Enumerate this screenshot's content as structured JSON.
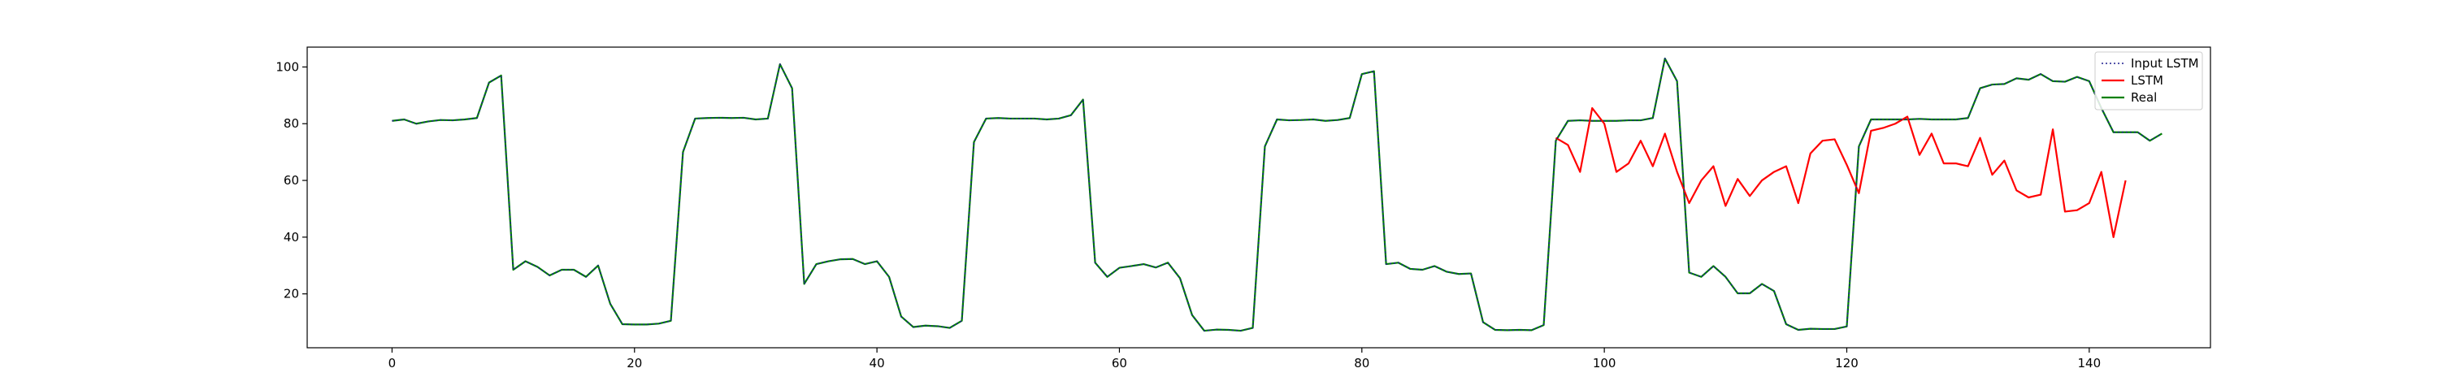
{
  "chart_data": {
    "type": "line",
    "title": "",
    "xlabel": "",
    "ylabel": "",
    "xlim": [
      -7,
      150
    ],
    "ylim": [
      1,
      107
    ],
    "xticks": [
      0,
      20,
      40,
      60,
      80,
      100,
      120,
      140
    ],
    "yticks": [
      20,
      40,
      60,
      80,
      100
    ],
    "grid": false,
    "legend_position": "top-right",
    "series": [
      {
        "name": "Input LSTM",
        "color": "#1f1f8f",
        "style": "dotted",
        "x_start": 0,
        "values": [
          81,
          81.5,
          80,
          80.8,
          81.3,
          81.2,
          81.5,
          82,
          94.5,
          97,
          28.5,
          31.5,
          29.5,
          26.5,
          28.5,
          28.5,
          26,
          30,
          16.5,
          9.3,
          9.2,
          9.2,
          9.5,
          10.5,
          70,
          81.8,
          82,
          82.1,
          82,
          82.1,
          81.5,
          81.8,
          101,
          92.5,
          23.5,
          30.5,
          31.5,
          32.2,
          32.3,
          30.5,
          31.5,
          26,
          12,
          8.3,
          8.8,
          8.6,
          8,
          10.5,
          73.5,
          81.8,
          82,
          81.8,
          81.8,
          81.8,
          81.5,
          81.8,
          83,
          88.5,
          31,
          26,
          29.2,
          29.8,
          30.5,
          29.3,
          31,
          25.5,
          12.5,
          7,
          7.4,
          7.3,
          7,
          8,
          72,
          81.5,
          81.2,
          81.3,
          81.5,
          81,
          81.3,
          82,
          97.5,
          98.5,
          30.5,
          31,
          28.8,
          28.5,
          29.8,
          27.8,
          27,
          27.2,
          10,
          7.3,
          7.2,
          7.3,
          7.2,
          9,
          74,
          81,
          81.2,
          81,
          81,
          81,
          81.2,
          81.2,
          82,
          103,
          95,
          27.5,
          26,
          29.8,
          26,
          20.2,
          20.2,
          23.5,
          21,
          9.3,
          7.3,
          7.7,
          7.6,
          7.6,
          8.5,
          72,
          81.5,
          81.5,
          81.5,
          81.5,
          81.7,
          81.5,
          81.5,
          81.5,
          82,
          92.5,
          93.8,
          94,
          96,
          95.5,
          97.5,
          95,
          94.8,
          96.5,
          95,
          85.5,
          77,
          77,
          77,
          74,
          76.5
        ]
      },
      {
        "name": "LSTM",
        "color": "#ff0000",
        "style": "solid",
        "x_start": 96,
        "values": [
          75,
          72.5,
          63,
          85.5,
          80,
          63,
          66,
          74,
          65,
          76.5,
          63,
          52,
          60,
          65,
          51,
          60.5,
          54.5,
          60,
          63,
          65,
          52,
          69.5,
          74,
          74.5,
          65.5,
          55.5,
          77.5,
          78.5,
          80,
          82.5,
          69,
          76.5,
          66,
          66,
          65,
          75,
          62,
          67,
          56.5,
          54,
          55,
          78,
          49,
          49.5,
          52,
          63,
          40,
          60
        ]
      },
      {
        "name": "Real",
        "color": "#008000",
        "style": "solid",
        "x_start": 0,
        "values": [
          81,
          81.5,
          80,
          80.8,
          81.3,
          81.2,
          81.5,
          82,
          94.5,
          97,
          28.5,
          31.5,
          29.5,
          26.5,
          28.5,
          28.5,
          26,
          30,
          16.5,
          9.3,
          9.2,
          9.2,
          9.5,
          10.5,
          70,
          81.8,
          82,
          82.1,
          82,
          82.1,
          81.5,
          81.8,
          101,
          92.5,
          23.5,
          30.5,
          31.5,
          32.2,
          32.3,
          30.5,
          31.5,
          26,
          12,
          8.3,
          8.8,
          8.6,
          8,
          10.5,
          73.5,
          81.8,
          82,
          81.8,
          81.8,
          81.8,
          81.5,
          81.8,
          83,
          88.5,
          31,
          26,
          29.2,
          29.8,
          30.5,
          29.3,
          31,
          25.5,
          12.5,
          7,
          7.4,
          7.3,
          7,
          8,
          72,
          81.5,
          81.2,
          81.3,
          81.5,
          81,
          81.3,
          82,
          97.5,
          98.5,
          30.5,
          31,
          28.8,
          28.5,
          29.8,
          27.8,
          27,
          27.2,
          10,
          7.3,
          7.2,
          7.3,
          7.2,
          9,
          74,
          81,
          81.2,
          81,
          81,
          81,
          81.2,
          81.2,
          82,
          103,
          95,
          27.5,
          26,
          29.8,
          26,
          20.2,
          20.2,
          23.5,
          21,
          9.3,
          7.3,
          7.7,
          7.6,
          7.6,
          8.5,
          72,
          81.5,
          81.5,
          81.5,
          81.5,
          81.7,
          81.5,
          81.5,
          81.5,
          82,
          92.5,
          93.8,
          94,
          96,
          95.5,
          97.5,
          95,
          94.8,
          96.5,
          95,
          85.5,
          77,
          77,
          77,
          74,
          76.5
        ]
      }
    ]
  }
}
